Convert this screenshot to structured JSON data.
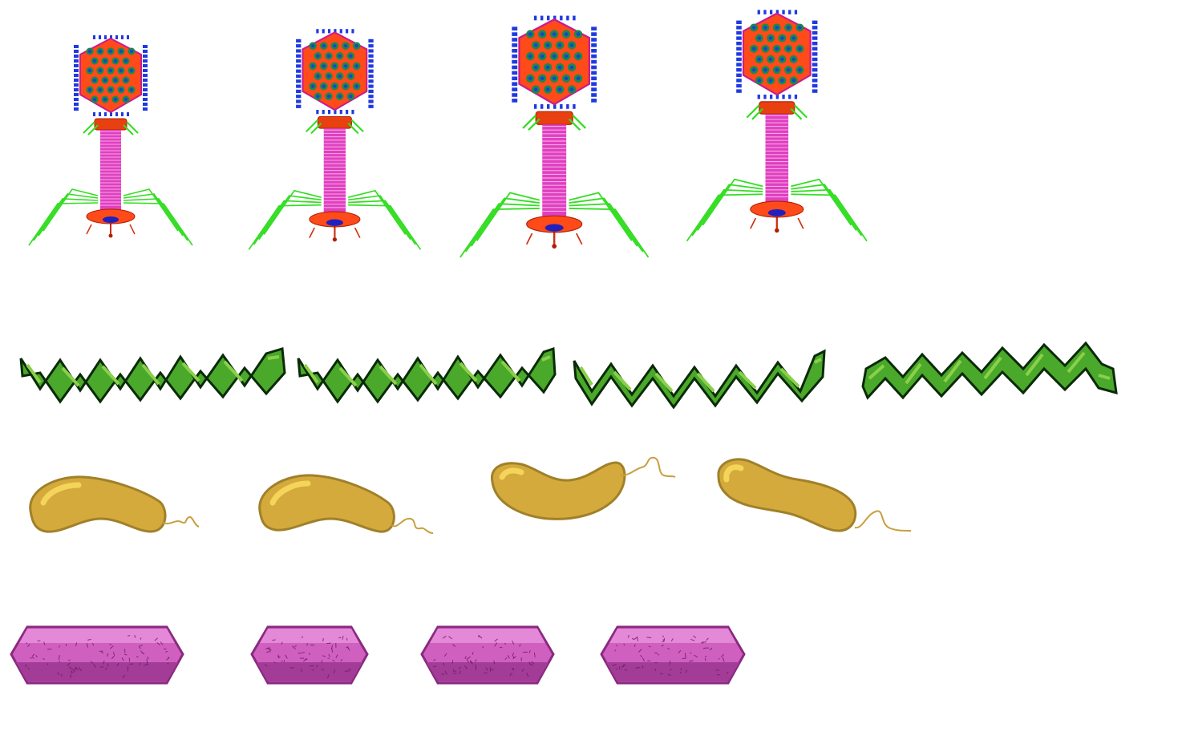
{
  "sprite_sheet": {
    "background": "#ffffff",
    "rows": [
      {
        "name": "bacteriophage",
        "frames": 4,
        "colors": {
          "capsid": "#ff4a1a",
          "capsomere_ring": "#1a8a4a",
          "capsomere_core": "#1a40d8",
          "spikes": "#1f3ae0",
          "tail": "#e040c0",
          "collar": "#e84010",
          "tail_fibers": "#33dd22",
          "base_plate": "#ff4a1a",
          "base_core": "#2020c0"
        }
      },
      {
        "name": "spirochete",
        "frames": 4,
        "colors": {
          "body": "#4aa82a",
          "highlight": "#8ad04a",
          "outline": "#0a2a08"
        }
      },
      {
        "name": "vibrio",
        "frames": 4,
        "colors": {
          "body": "#d4aa3c",
          "highlight": "#f5d45a",
          "outline": "#a0802a",
          "flagellum": "#c8a040"
        }
      },
      {
        "name": "bacillus",
        "frames": 4,
        "colors": {
          "body": "#d060c0",
          "top": "#e488d8",
          "shadow": "#a23c96",
          "outline": "#8a2a80"
        }
      }
    ]
  }
}
